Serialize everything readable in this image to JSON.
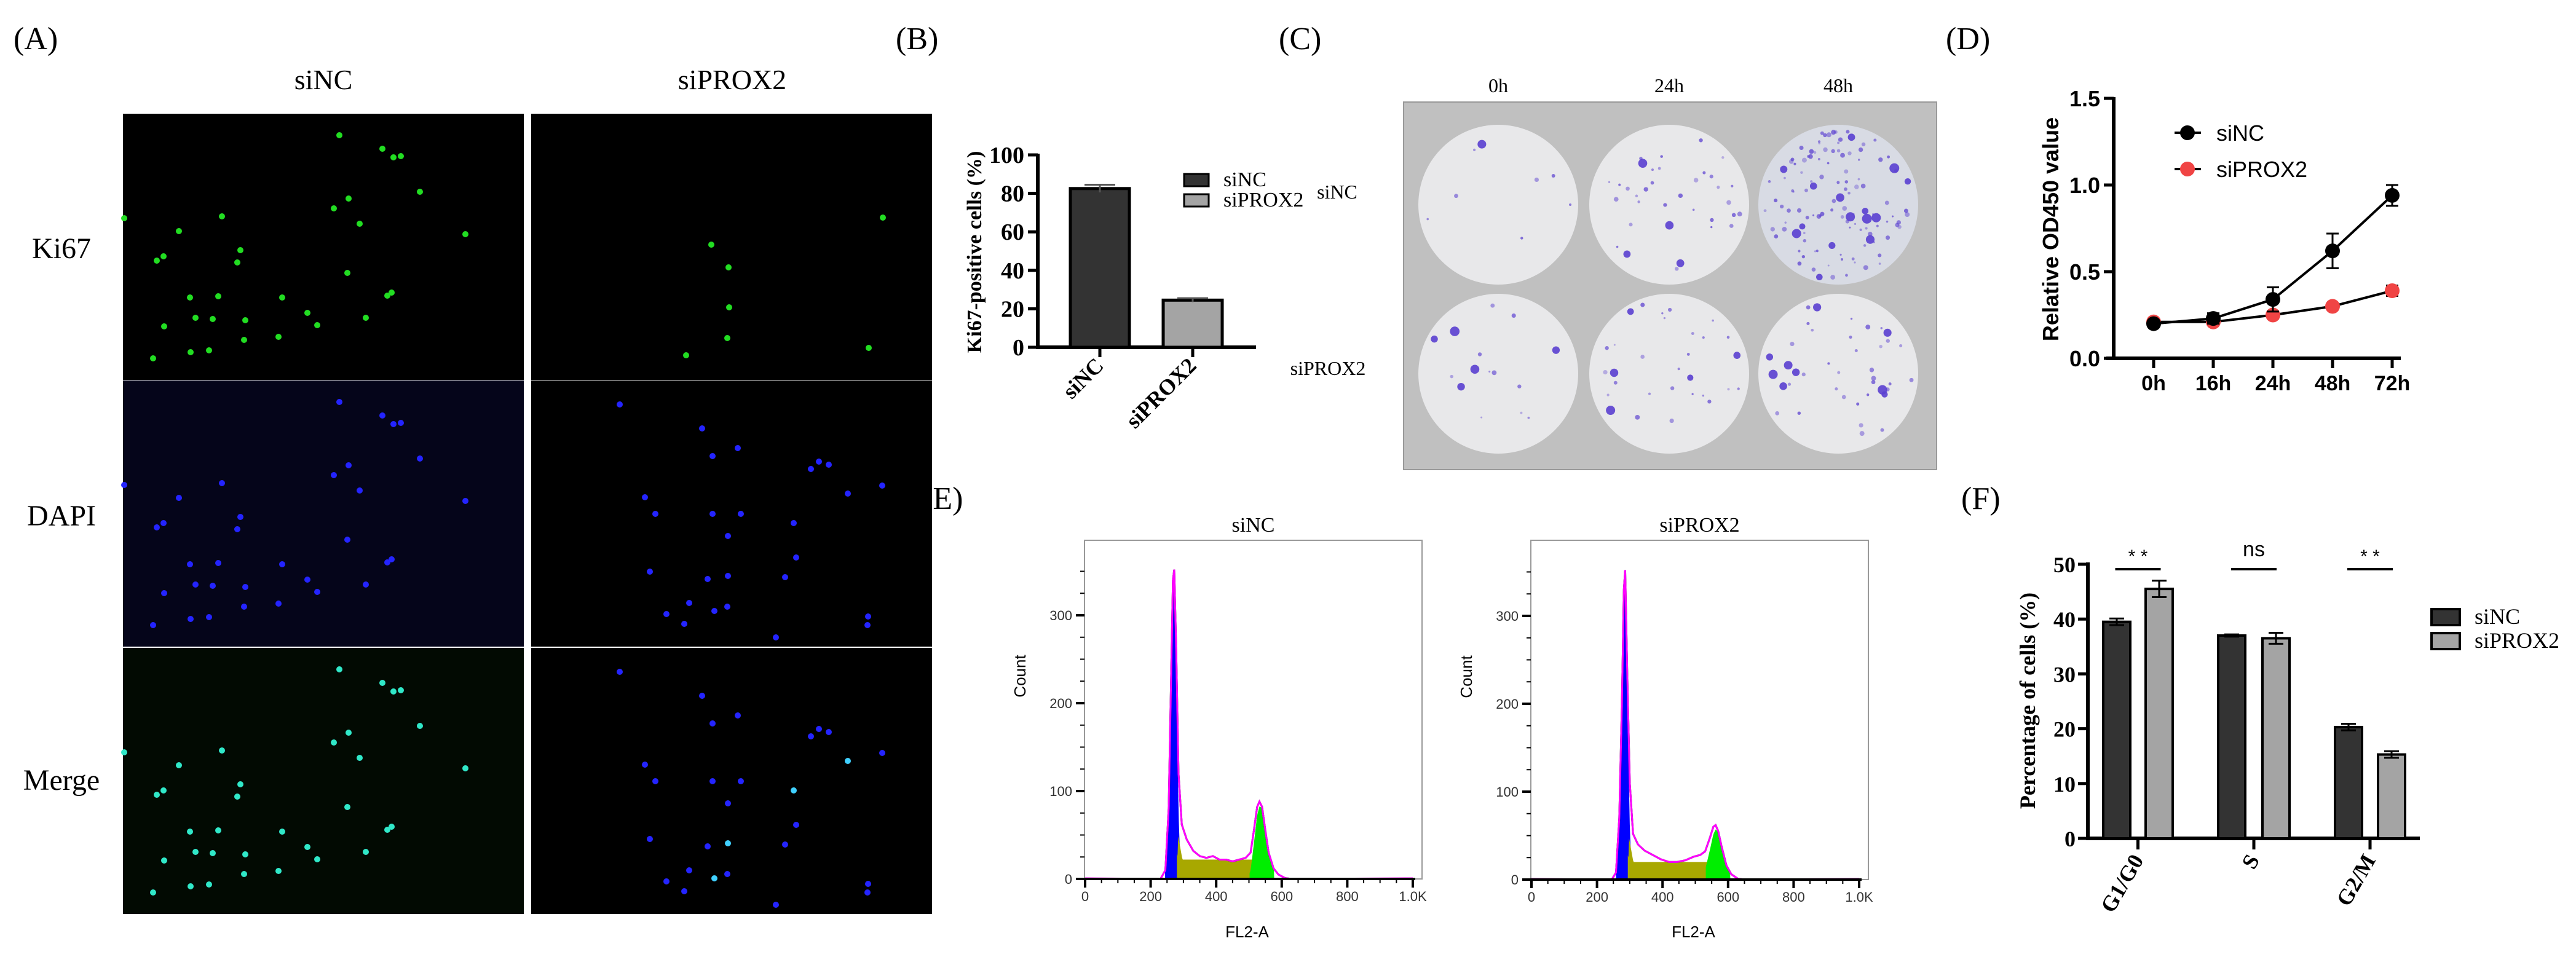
{
  "panel_labels": {
    "A": "(A)",
    "B": "(B)",
    "C": "(C)",
    "D": "(D)",
    "E": "(E)",
    "F": "(F)"
  },
  "panel_a": {
    "columns": [
      "siNC",
      "siPROX2"
    ],
    "rows": [
      "Ki67",
      "DAPI",
      "Merge"
    ],
    "stain_colors": {
      "Ki67": "#22dd22",
      "DAPI": "#2424ff",
      "Merge_siNC": "#30e8c8"
    }
  },
  "panel_c": {
    "columns": [
      "0h",
      "24h",
      "48h"
    ],
    "rows": [
      "siNC",
      "siPROX2"
    ],
    "colony_color": "#5a3fd0",
    "background": "#c0c0c0"
  },
  "chart_data": [
    {
      "panel": "B",
      "type": "bar",
      "categories": [
        "siNC",
        "siPROX2"
      ],
      "values": [
        82.5,
        24.5
      ],
      "errors": [
        2,
        1
      ],
      "ylabel": "Ki67-positive cells (%)",
      "xlabel": "",
      "ylim": [
        0,
        100
      ],
      "yticks": [
        "0",
        "20",
        "40",
        "60",
        "80",
        "100"
      ],
      "legend": [
        "siNC",
        "siPROX2"
      ],
      "legend_position": "top-right",
      "colors": [
        "#333333",
        "#a4a4a4"
      ]
    },
    {
      "panel": "D",
      "type": "line",
      "x": [
        "0h",
        "16h",
        "24h",
        "48h",
        "72h"
      ],
      "series": [
        {
          "name": "siNC",
          "values": [
            0.2,
            0.23,
            0.34,
            0.62,
            0.94
          ],
          "errors": [
            0.01,
            0.03,
            0.07,
            0.1,
            0.06
          ],
          "color": "#000000"
        },
        {
          "name": "siPROX2",
          "values": [
            0.21,
            0.21,
            0.25,
            0.3,
            0.39
          ],
          "errors": [
            0.01,
            0.01,
            0.02,
            0.01,
            0.03
          ],
          "color": "#f04444"
        }
      ],
      "ylabel": "Relative OD450 value",
      "ylim": [
        0,
        1.5
      ],
      "yticks": [
        "0.0",
        "0.5",
        "1.0",
        "1.5"
      ],
      "legend_position": "top-left"
    },
    {
      "panel": "E",
      "type": "area",
      "title": "siNC",
      "xlabel": "FL2-A",
      "ylabel": "Count",
      "xlim": [
        0,
        1000
      ],
      "ylim": [
        0,
        370
      ],
      "xticks": [
        "0",
        "200",
        "400",
        "600",
        "800",
        "1.0K"
      ],
      "yticks": [
        "0",
        "100",
        "200",
        "300"
      ],
      "x": [
        230,
        245,
        255,
        262,
        268,
        272,
        278,
        285,
        295,
        310,
        330,
        350,
        370,
        390,
        410,
        430,
        450,
        470,
        490,
        505,
        515,
        525,
        532,
        540,
        550,
        560,
        575,
        590,
        610,
        630
      ],
      "counts": [
        0,
        10,
        80,
        220,
        340,
        352,
        260,
        120,
        62,
        45,
        32,
        26,
        24,
        26,
        22,
        22,
        20,
        22,
        24,
        30,
        55,
        82,
        88,
        82,
        55,
        30,
        12,
        5,
        1,
        0
      ],
      "phase_colors": {
        "G1": "#0000ff",
        "S": "#a8a800",
        "G2": "#00ee00",
        "fit": "#ff00ff"
      }
    },
    {
      "panel": "E",
      "type": "area",
      "title": "siPROX2",
      "xlabel": "FL2-A",
      "ylabel": "Count",
      "xlim": [
        0,
        1000
      ],
      "ylim": [
        0,
        370
      ],
      "xticks": [
        "0",
        "200",
        "400",
        "600",
        "800",
        "1.0K"
      ],
      "yticks": [
        "0",
        "100",
        "200",
        "300"
      ],
      "x": [
        245,
        258,
        268,
        276,
        282,
        286,
        292,
        300,
        310,
        325,
        345,
        370,
        395,
        420,
        445,
        470,
        495,
        515,
        530,
        545,
        555,
        562,
        570,
        580,
        595,
        610,
        630,
        650
      ],
      "counts": [
        0,
        8,
        70,
        200,
        330,
        352,
        240,
        110,
        52,
        40,
        33,
        28,
        23,
        20,
        20,
        22,
        26,
        28,
        32,
        48,
        60,
        62,
        55,
        38,
        16,
        6,
        1,
        0
      ],
      "phase_colors": {
        "G1": "#0000ff",
        "S": "#a8a800",
        "G2": "#00ee00",
        "fit": "#ff00ff"
      }
    },
    {
      "panel": "F",
      "type": "bar",
      "categories": [
        "G1/G0",
        "S",
        "G2/M"
      ],
      "series": [
        {
          "name": "siNC",
          "values": [
            39.5,
            37.0,
            20.3
          ],
          "errors": [
            0.6,
            0.2,
            0.6
          ],
          "color": "#333333"
        },
        {
          "name": "siPROX2",
          "values": [
            45.5,
            36.5,
            15.3
          ],
          "errors": [
            1.5,
            1.0,
            0.6
          ],
          "color": "#a4a4a4"
        }
      ],
      "significance": [
        "* *",
        "ns",
        "* *"
      ],
      "ylabel": "Percentage of cells (%)",
      "ylim": [
        0,
        50
      ],
      "yticks": [
        "0",
        "10",
        "20",
        "30",
        "40",
        "50"
      ],
      "legend_position": "right"
    }
  ]
}
